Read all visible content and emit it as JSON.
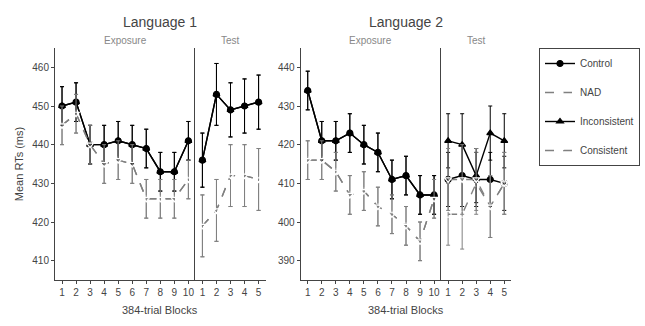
{
  "chart_data": [
    {
      "type": "line",
      "title": "Language 1",
      "xlabel": "384-trial Blocks",
      "ylabel": "Mean RTs (ms)",
      "annotations": [
        "Exposure"
      ],
      "x": [
        1,
        2,
        3,
        4,
        5,
        6,
        7,
        8,
        9,
        10
      ],
      "xlim": [
        0.5,
        10.5
      ],
      "xticks": [
        1,
        2,
        3,
        4,
        5,
        6,
        7,
        8,
        9,
        10
      ],
      "ylim": [
        405,
        465
      ],
      "yticks": [
        410,
        420,
        430,
        440,
        450,
        460
      ],
      "grid": false,
      "legend": "upper right",
      "series": [
        {
          "name": "Control",
          "color": "black",
          "marker": "circle",
          "line_style": "solid",
          "values": [
            450,
            451,
            440,
            440,
            441,
            440,
            439,
            433,
            433,
            441
          ],
          "errors": [
            5,
            5,
            5,
            5,
            5,
            5,
            5,
            5,
            5,
            5
          ]
        },
        {
          "name": "NAD",
          "color": "gray",
          "marker": "circle-open",
          "line_style": "dash",
          "values": [
            445,
            448,
            440,
            435,
            436,
            435,
            426,
            426,
            426,
            431
          ],
          "errors": [
            5,
            5,
            5,
            5,
            5,
            5,
            5,
            5,
            5,
            5
          ]
        },
        {
          "name": "Inconsistent",
          "color": "black",
          "marker": "triangle-up",
          "line_style": "solid",
          "values": [
            450,
            451,
            440,
            440,
            441,
            440,
            439,
            433,
            433,
            441
          ],
          "errors": [
            5,
            5,
            5,
            5,
            5,
            5,
            5,
            5,
            5,
            5
          ]
        },
        {
          "name": "Consistent",
          "color": "gray",
          "marker": "triangle-down-open",
          "line_style": "dash",
          "values": [
            445,
            448,
            440,
            435,
            436,
            435,
            426,
            426,
            426,
            431
          ],
          "errors": [
            5,
            5,
            5,
            5,
            5,
            5,
            5,
            5,
            5,
            5
          ]
        }
      ]
    },
    {
      "type": "line",
      "annotations": [
        "Test"
      ],
      "x": [
        1,
        2,
        3,
        4,
        5
      ],
      "xlim": [
        0.5,
        5.5
      ],
      "xticks": [
        1,
        2,
        3,
        4,
        5
      ],
      "ylim": [
        405,
        465
      ],
      "tick_labels": "x",
      "grid": false,
      "series": [
        {
          "name": "Control",
          "color": "black",
          "marker": "circle",
          "line_style": "solid",
          "values": [
            436,
            453,
            449,
            450,
            451
          ],
          "errors": [
            7,
            8,
            7,
            7,
            7
          ]
        },
        {
          "name": "NAD",
          "color": "gray",
          "marker": "circle-open",
          "line_style": "dash",
          "values": [
            419,
            423,
            432,
            432,
            431
          ],
          "errors": [
            8,
            8,
            8,
            8,
            8
          ]
        },
        {
          "name": "Inconsistent",
          "color": "black",
          "marker": "triangle-up",
          "line_style": "solid",
          "values": [
            436,
            453,
            449,
            450,
            451
          ],
          "errors": [
            7,
            8,
            7,
            7,
            7
          ]
        },
        {
          "name": "Consistent",
          "color": "gray",
          "marker": "triangle-down-open",
          "line_style": "dash",
          "values": [
            419,
            423,
            432,
            432,
            431
          ],
          "errors": [
            8,
            8,
            8,
            8,
            8
          ]
        }
      ]
    },
    {
      "type": "line",
      "title": "Language 2",
      "xlabel": "384-trial Blocks",
      "annotations": [
        "Exposure"
      ],
      "x": [
        1,
        2,
        3,
        4,
        5,
        6,
        7,
        8,
        9,
        10
      ],
      "xlim": [
        0.5,
        10.5
      ],
      "xticks": [
        1,
        2,
        3,
        4,
        5,
        6,
        7,
        8,
        9,
        10
      ],
      "ylim": [
        385,
        445
      ],
      "yticks": [
        390,
        400,
        410,
        420,
        430,
        440
      ],
      "grid": false,
      "series": [
        {
          "name": "Control",
          "color": "black",
          "marker": "circle",
          "line_style": "solid",
          "values": [
            434,
            421,
            421,
            423,
            420,
            418,
            411,
            412,
            407,
            407
          ],
          "errors": [
            5,
            5,
            5,
            5,
            5,
            5,
            5,
            5,
            5,
            5
          ]
        },
        {
          "name": "NAD",
          "color": "gray",
          "marker": "circle-open",
          "line_style": "dash",
          "values": [
            416,
            416,
            413,
            407,
            408,
            404,
            402,
            399,
            395,
            406
          ],
          "errors": [
            5,
            5,
            5,
            5,
            5,
            5,
            5,
            5,
            5,
            5
          ]
        },
        {
          "name": "Inconsistent",
          "color": "black",
          "marker": "triangle-up",
          "line_style": "solid",
          "values": [
            434,
            421,
            421,
            423,
            420,
            418,
            411,
            412,
            407,
            407
          ],
          "errors": [
            5,
            5,
            5,
            5,
            5,
            5,
            5,
            5,
            5,
            5
          ]
        },
        {
          "name": "Consistent",
          "color": "gray",
          "marker": "triangle-down-open",
          "line_style": "dash",
          "values": [
            416,
            416,
            413,
            407,
            408,
            404,
            402,
            399,
            395,
            406
          ],
          "errors": [
            5,
            5,
            5,
            5,
            5,
            5,
            5,
            5,
            5,
            5
          ]
        }
      ]
    },
    {
      "type": "line",
      "annotations": [
        "Test"
      ],
      "x": [
        1,
        2,
        3,
        4,
        5
      ],
      "xlim": [
        0.5,
        5.5
      ],
      "xticks": [
        1,
        2,
        3,
        4,
        5
      ],
      "ylim": [
        385,
        445
      ],
      "tick_labels": "x",
      "grid": false,
      "series": [
        {
          "name": "Control",
          "color": "black",
          "marker": "circle",
          "line_style": "solid",
          "values": [
            411,
            412,
            411,
            411,
            410
          ],
          "errors": [
            7,
            8,
            7,
            7,
            7
          ]
        },
        {
          "name": "NAD",
          "color": "gray",
          "marker": "circle-open",
          "line_style": "dash",
          "values": [
            402,
            402,
            410,
            404,
            410
          ],
          "errors": [
            8,
            9,
            8,
            8,
            8
          ]
        },
        {
          "name": "Inconsistent",
          "color": "black",
          "marker": "triangle-up",
          "line_style": "solid",
          "values": [
            421,
            420,
            412,
            423,
            421
          ],
          "errors": [
            7,
            8,
            7,
            7,
            7
          ]
        },
        {
          "name": "Consistent",
          "color": "gray",
          "marker": "triangle-down-open",
          "line_style": "dash",
          "values": [
            411,
            411,
            411,
            404,
            410
          ],
          "errors": [
            8,
            9,
            8,
            8,
            8
          ]
        }
      ]
    }
  ]
}
